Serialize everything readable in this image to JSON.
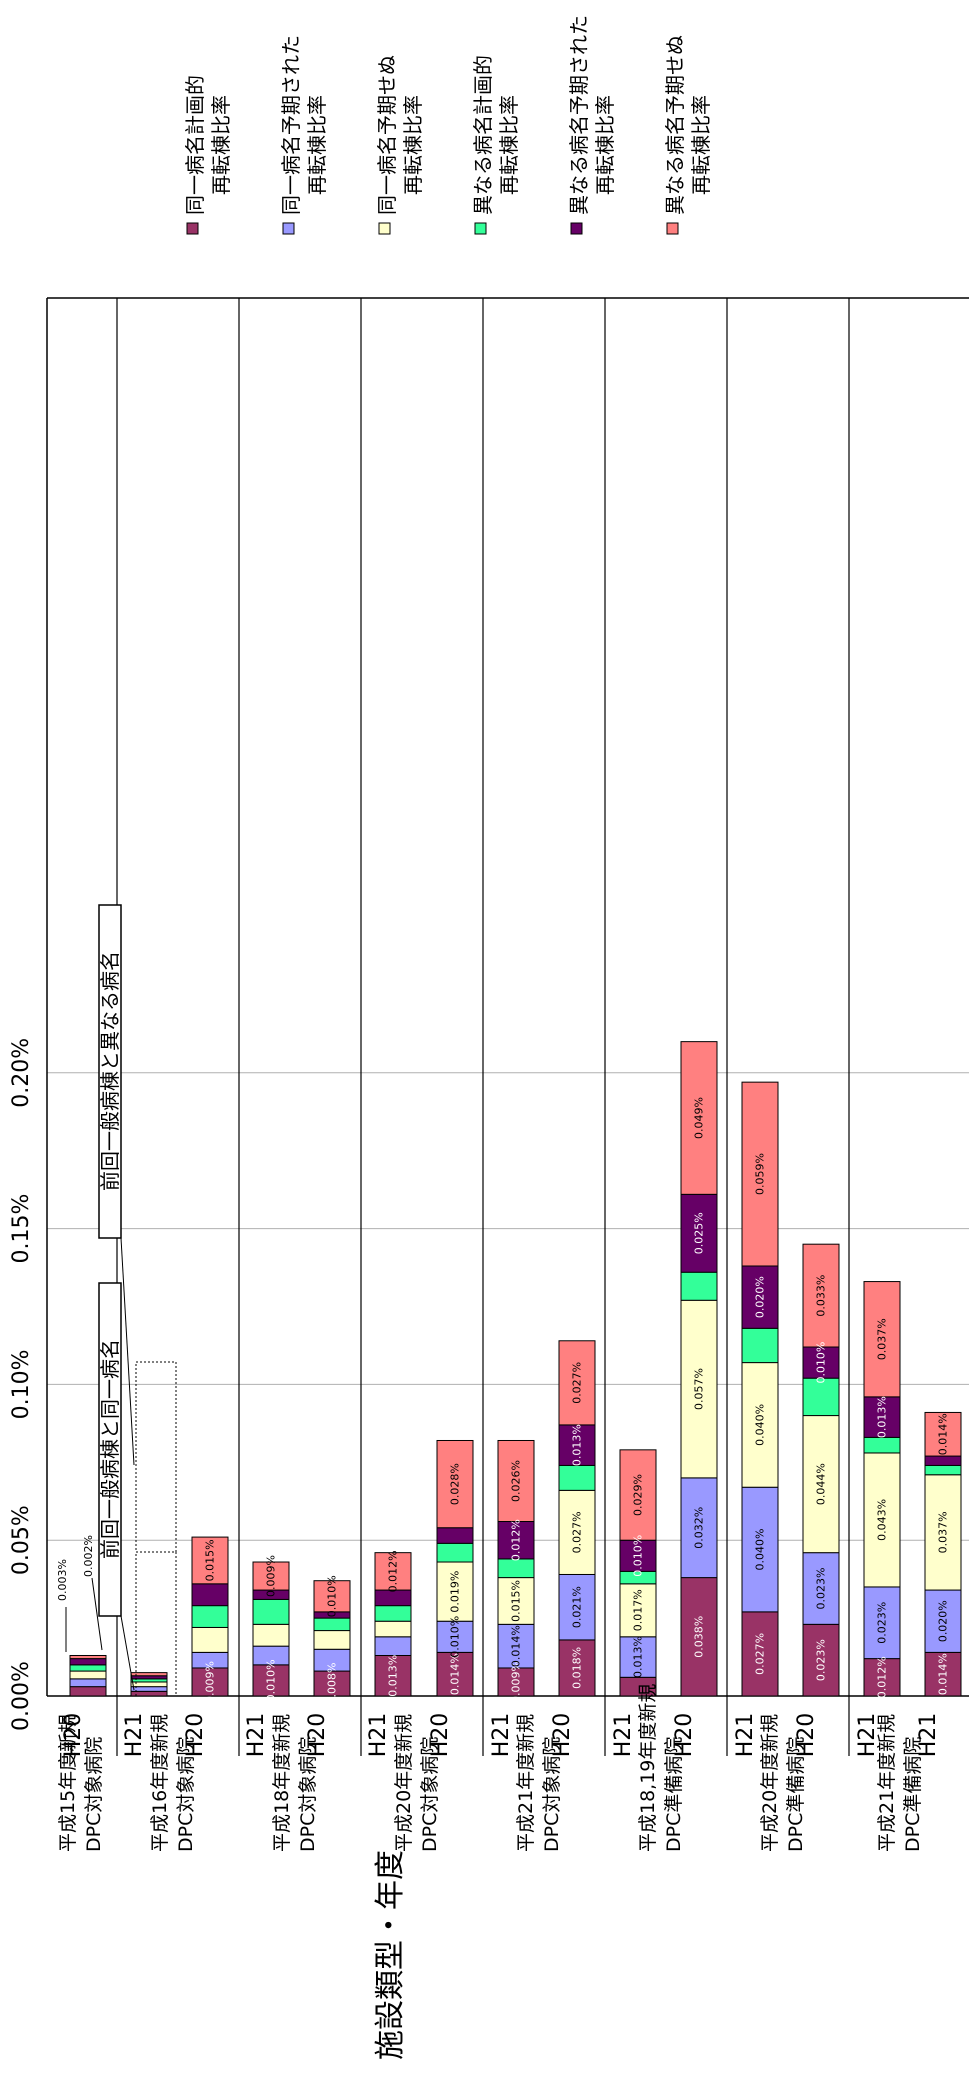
{
  "chart_data": {
    "type": "bar",
    "stacked": true,
    "orientation": "horizontal",
    "rotation": "page rotated 90 degrees clockwise",
    "xlim": [
      0,
      0.0022
    ],
    "x_ticks": [
      {
        "value": 0,
        "label": "0.00%"
      },
      {
        "value": 0.0005,
        "label": "0.05%"
      },
      {
        "value": 0.001,
        "label": "0.10%"
      },
      {
        "value": 0.0015,
        "label": "0.15%"
      },
      {
        "value": 0.002,
        "label": "0.20%"
      }
    ],
    "grid": "vertical gridlines at major ticks",
    "ylabel": "施設類型・年度",
    "groups": [
      {
        "label": "平成15年度新規\nDPC対象病院",
        "bars": [
          "H20",
          "H21"
        ]
      },
      {
        "label": "平成16年度新規\nDPC対象病院",
        "bars": [
          "H20",
          "H21"
        ]
      },
      {
        "label": "平成18年度新規\nDPC対象病院",
        "bars": [
          "H20",
          "H21"
        ]
      },
      {
        "label": "平成20年度新規\nDPC対象病院",
        "bars": [
          "H20",
          "H21"
        ]
      },
      {
        "label": "平成21年度新規\nDPC対象病院",
        "bars": [
          "H20",
          "H21"
        ]
      },
      {
        "label": "平成18,19年度新規\nDPC準備病院",
        "bars": [
          "H20",
          "H21"
        ]
      },
      {
        "label": "平成20年度新規\nDPC準備病院",
        "bars": [
          "H20",
          "H21"
        ]
      },
      {
        "label": "平成21年度新規\nDPC準備病院",
        "bars": [
          "H21"
        ]
      }
    ],
    "categories": [
      "H20",
      "H21",
      "H20",
      "H21",
      "H20",
      "H21",
      "H20",
      "H21",
      "H20",
      "H21",
      "H20",
      "H21",
      "H20",
      "H21",
      "H21"
    ],
    "series": [
      {
        "name": "同一病名計画的\n再転棟比率",
        "color": "#993366",
        "values": [
          3e-05,
          1.5e-05,
          9e-05,
          0.0001,
          8e-05,
          0.00013,
          0.00014,
          9e-05,
          0.00018,
          6e-05,
          0.00038,
          0.00027,
          0.00023,
          0.00012,
          0.00014
        ],
        "labels": [
          "",
          "",
          "0.009%",
          "0.010%",
          "0.008%",
          "0.013%",
          "0.014%",
          "0.009%",
          "0.018%",
          "",
          "0.038%",
          "0.027%",
          "0.023%",
          "0.012%",
          "0.014%"
        ]
      },
      {
        "name": "同一病名予期された\n再転棟比率",
        "color": "#9999FF",
        "values": [
          2.5e-05,
          1.5e-05,
          5e-05,
          6e-05,
          7e-05,
          6e-05,
          0.0001,
          0.00014,
          0.00021,
          0.00013,
          0.00032,
          0.0004,
          0.00023,
          0.00023,
          0.0002
        ],
        "labels": [
          "",
          "",
          "",
          "",
          "",
          "",
          "0.010%",
          "0.014%",
          "0.021%",
          "0.013%",
          "0.032%",
          "0.040%",
          "0.023%",
          "0.023%",
          "0.020%"
        ]
      },
      {
        "name": "同一病名予期せぬ\n再転棟比率",
        "color": "#FFFFCC",
        "values": [
          2.5e-05,
          1.5e-05,
          8e-05,
          7e-05,
          6e-05,
          5e-05,
          0.00019,
          0.00015,
          0.00027,
          0.00017,
          0.00057,
          0.0004,
          0.00044,
          0.00043,
          0.00037
        ],
        "labels": [
          "",
          "",
          "",
          "",
          "",
          "",
          "0.019%",
          "0.015%",
          "0.027%",
          "0.017%",
          "0.057%",
          "0.040%",
          "0.044%",
          "0.043%",
          "0.037%"
        ]
      },
      {
        "name": "異なる病名計画的\n再転棟比率",
        "color": "#33FF99",
        "values": [
          2e-05,
          1e-05,
          7e-05,
          8e-05,
          4e-05,
          5e-05,
          6e-05,
          6e-05,
          8e-05,
          4e-05,
          9e-05,
          0.00011,
          0.00012,
          5e-05,
          3e-05
        ],
        "labels": [
          "",
          "",
          "",
          "",
          "",
          "",
          "",
          "",
          "",
          "",
          "",
          "",
          "",
          "",
          ""
        ]
      },
      {
        "name": "異なる病名予期された\n再転棟比率",
        "color": "#660066",
        "values": [
          2e-05,
          1e-05,
          7e-05,
          3e-05,
          2e-05,
          5e-05,
          5e-05,
          0.00012,
          0.00013,
          0.0001,
          0.00025,
          0.0002,
          0.0001,
          0.00013,
          3e-05
        ],
        "labels": [
          "",
          "",
          "",
          "",
          "",
          "",
          "",
          "0.012%",
          "0.013%",
          "0.010%",
          "0.025%",
          "0.020%",
          "0.010%",
          "0.013%",
          ""
        ]
      },
      {
        "name": "異なる病名予期せぬ\n再転棟比率",
        "color": "#FF8080",
        "values": [
          1e-05,
          1e-05,
          0.00015,
          9e-05,
          0.0001,
          0.00012,
          0.00028,
          0.00026,
          0.00027,
          0.00029,
          0.00049,
          0.00059,
          0.00033,
          0.00037,
          0.00014
        ],
        "labels": [
          "",
          "",
          "0.015%",
          "0.009%",
          "0.010%",
          "0.012%",
          "0.028%",
          "0.026%",
          "0.027%",
          "0.029%",
          "0.049%",
          "0.059%",
          "0.033%",
          "0.037%",
          "0.014%"
        ]
      }
    ],
    "annotations": [
      {
        "text": "0.003%",
        "bar": 0
      },
      {
        "text": "0.002%",
        "bar": 1
      },
      {
        "text": "前回一般病棟と同一病名"
      },
      {
        "text": "前回一般病棟と異なる病名"
      }
    ],
    "legend_position": "right side of the page"
  }
}
